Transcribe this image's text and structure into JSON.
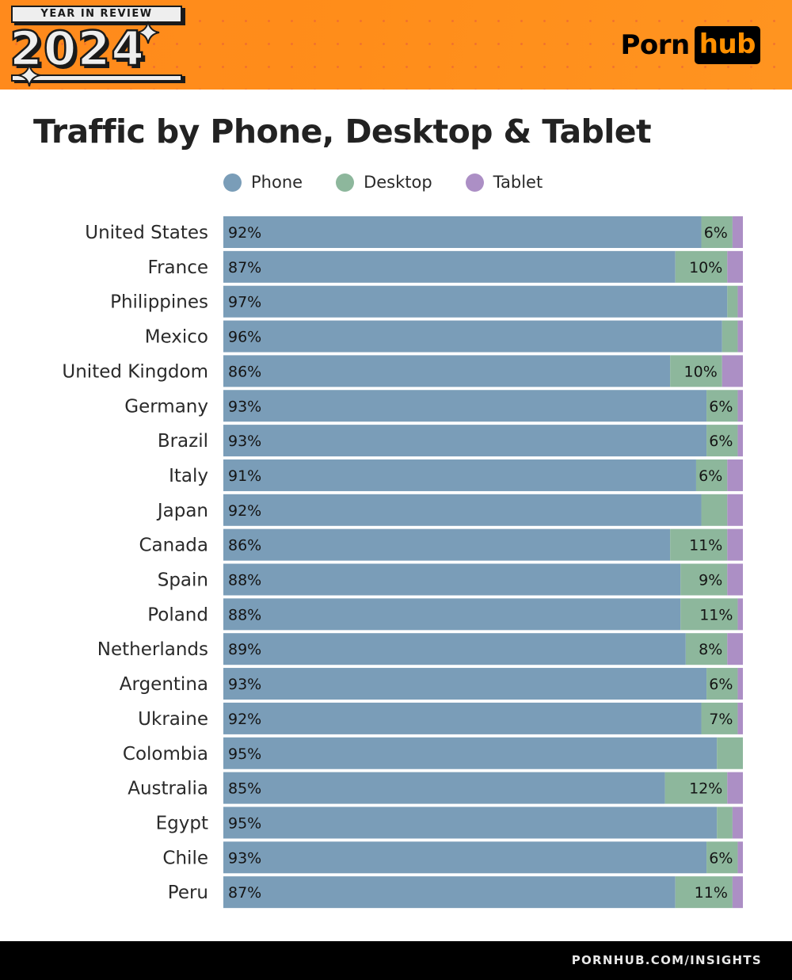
{
  "header": {
    "badge_top": "YEAR IN REVIEW",
    "badge_year": "2024",
    "logo_part1": "Porn",
    "logo_part2": "hub"
  },
  "footer": {
    "url": "PORNHUB.COM/INSIGHTS"
  },
  "colors": {
    "phone": "#7a9db8",
    "desktop": "#8db79c",
    "tablet": "#ac8fc5",
    "header_orange": "#ff8d1a",
    "label_text": "#1a1a1a"
  },
  "chart_data": {
    "type": "bar",
    "orientation": "horizontal",
    "stacked": true,
    "normalized_percent": true,
    "title": "Traffic by Phone, Desktop & Tablet",
    "xlabel": "",
    "ylabel": "",
    "xlim": [
      0,
      100
    ],
    "grid": false,
    "legend_position": "top",
    "legend": [
      "Phone",
      "Desktop",
      "Tablet"
    ],
    "categories": [
      "United States",
      "France",
      "Philippines",
      "Mexico",
      "United Kingdom",
      "Germany",
      "Brazil",
      "Italy",
      "Japan",
      "Canada",
      "Spain",
      "Poland",
      "Netherlands",
      "Argentina",
      "Ukraine",
      "Colombia",
      "Australia",
      "Egypt",
      "Chile",
      "Peru"
    ],
    "series": [
      {
        "name": "Phone",
        "color_key": "phone",
        "values": [
          92,
          87,
          97,
          96,
          86,
          93,
          93,
          91,
          92,
          86,
          88,
          88,
          89,
          93,
          92,
          95,
          85,
          95,
          93,
          87
        ],
        "labels": [
          "92%",
          "87%",
          "97%",
          "96%",
          "86%",
          "93%",
          "93%",
          "91%",
          "92%",
          "86%",
          "88%",
          "88%",
          "89%",
          "93%",
          "92%",
          "95%",
          "85%",
          "95%",
          "93%",
          "87%"
        ]
      },
      {
        "name": "Desktop",
        "color_key": "desktop",
        "values": [
          6,
          10,
          2,
          3,
          10,
          6,
          6,
          6,
          5,
          11,
          9,
          11,
          8,
          6,
          7,
          5,
          12,
          3,
          6,
          11
        ],
        "labels": [
          "6%",
          "10%",
          "",
          "",
          "10%",
          "6%",
          "6%",
          "6%",
          "",
          "11%",
          "9%",
          "11%",
          "8%",
          "6%",
          "7%",
          "",
          "12%",
          "",
          "6%",
          "11%"
        ]
      },
      {
        "name": "Tablet",
        "color_key": "tablet",
        "values": [
          2,
          3,
          1,
          1,
          4,
          1,
          1,
          3,
          3,
          3,
          3,
          1,
          3,
          1,
          1,
          1,
          3,
          2,
          1,
          2
        ],
        "labels": [
          "",
          "",
          "",
          "",
          "",
          "",
          "",
          "",
          "",
          "",
          "",
          "",
          "",
          "",
          "",
          "",
          "",
          "",
          "",
          ""
        ]
      }
    ]
  }
}
